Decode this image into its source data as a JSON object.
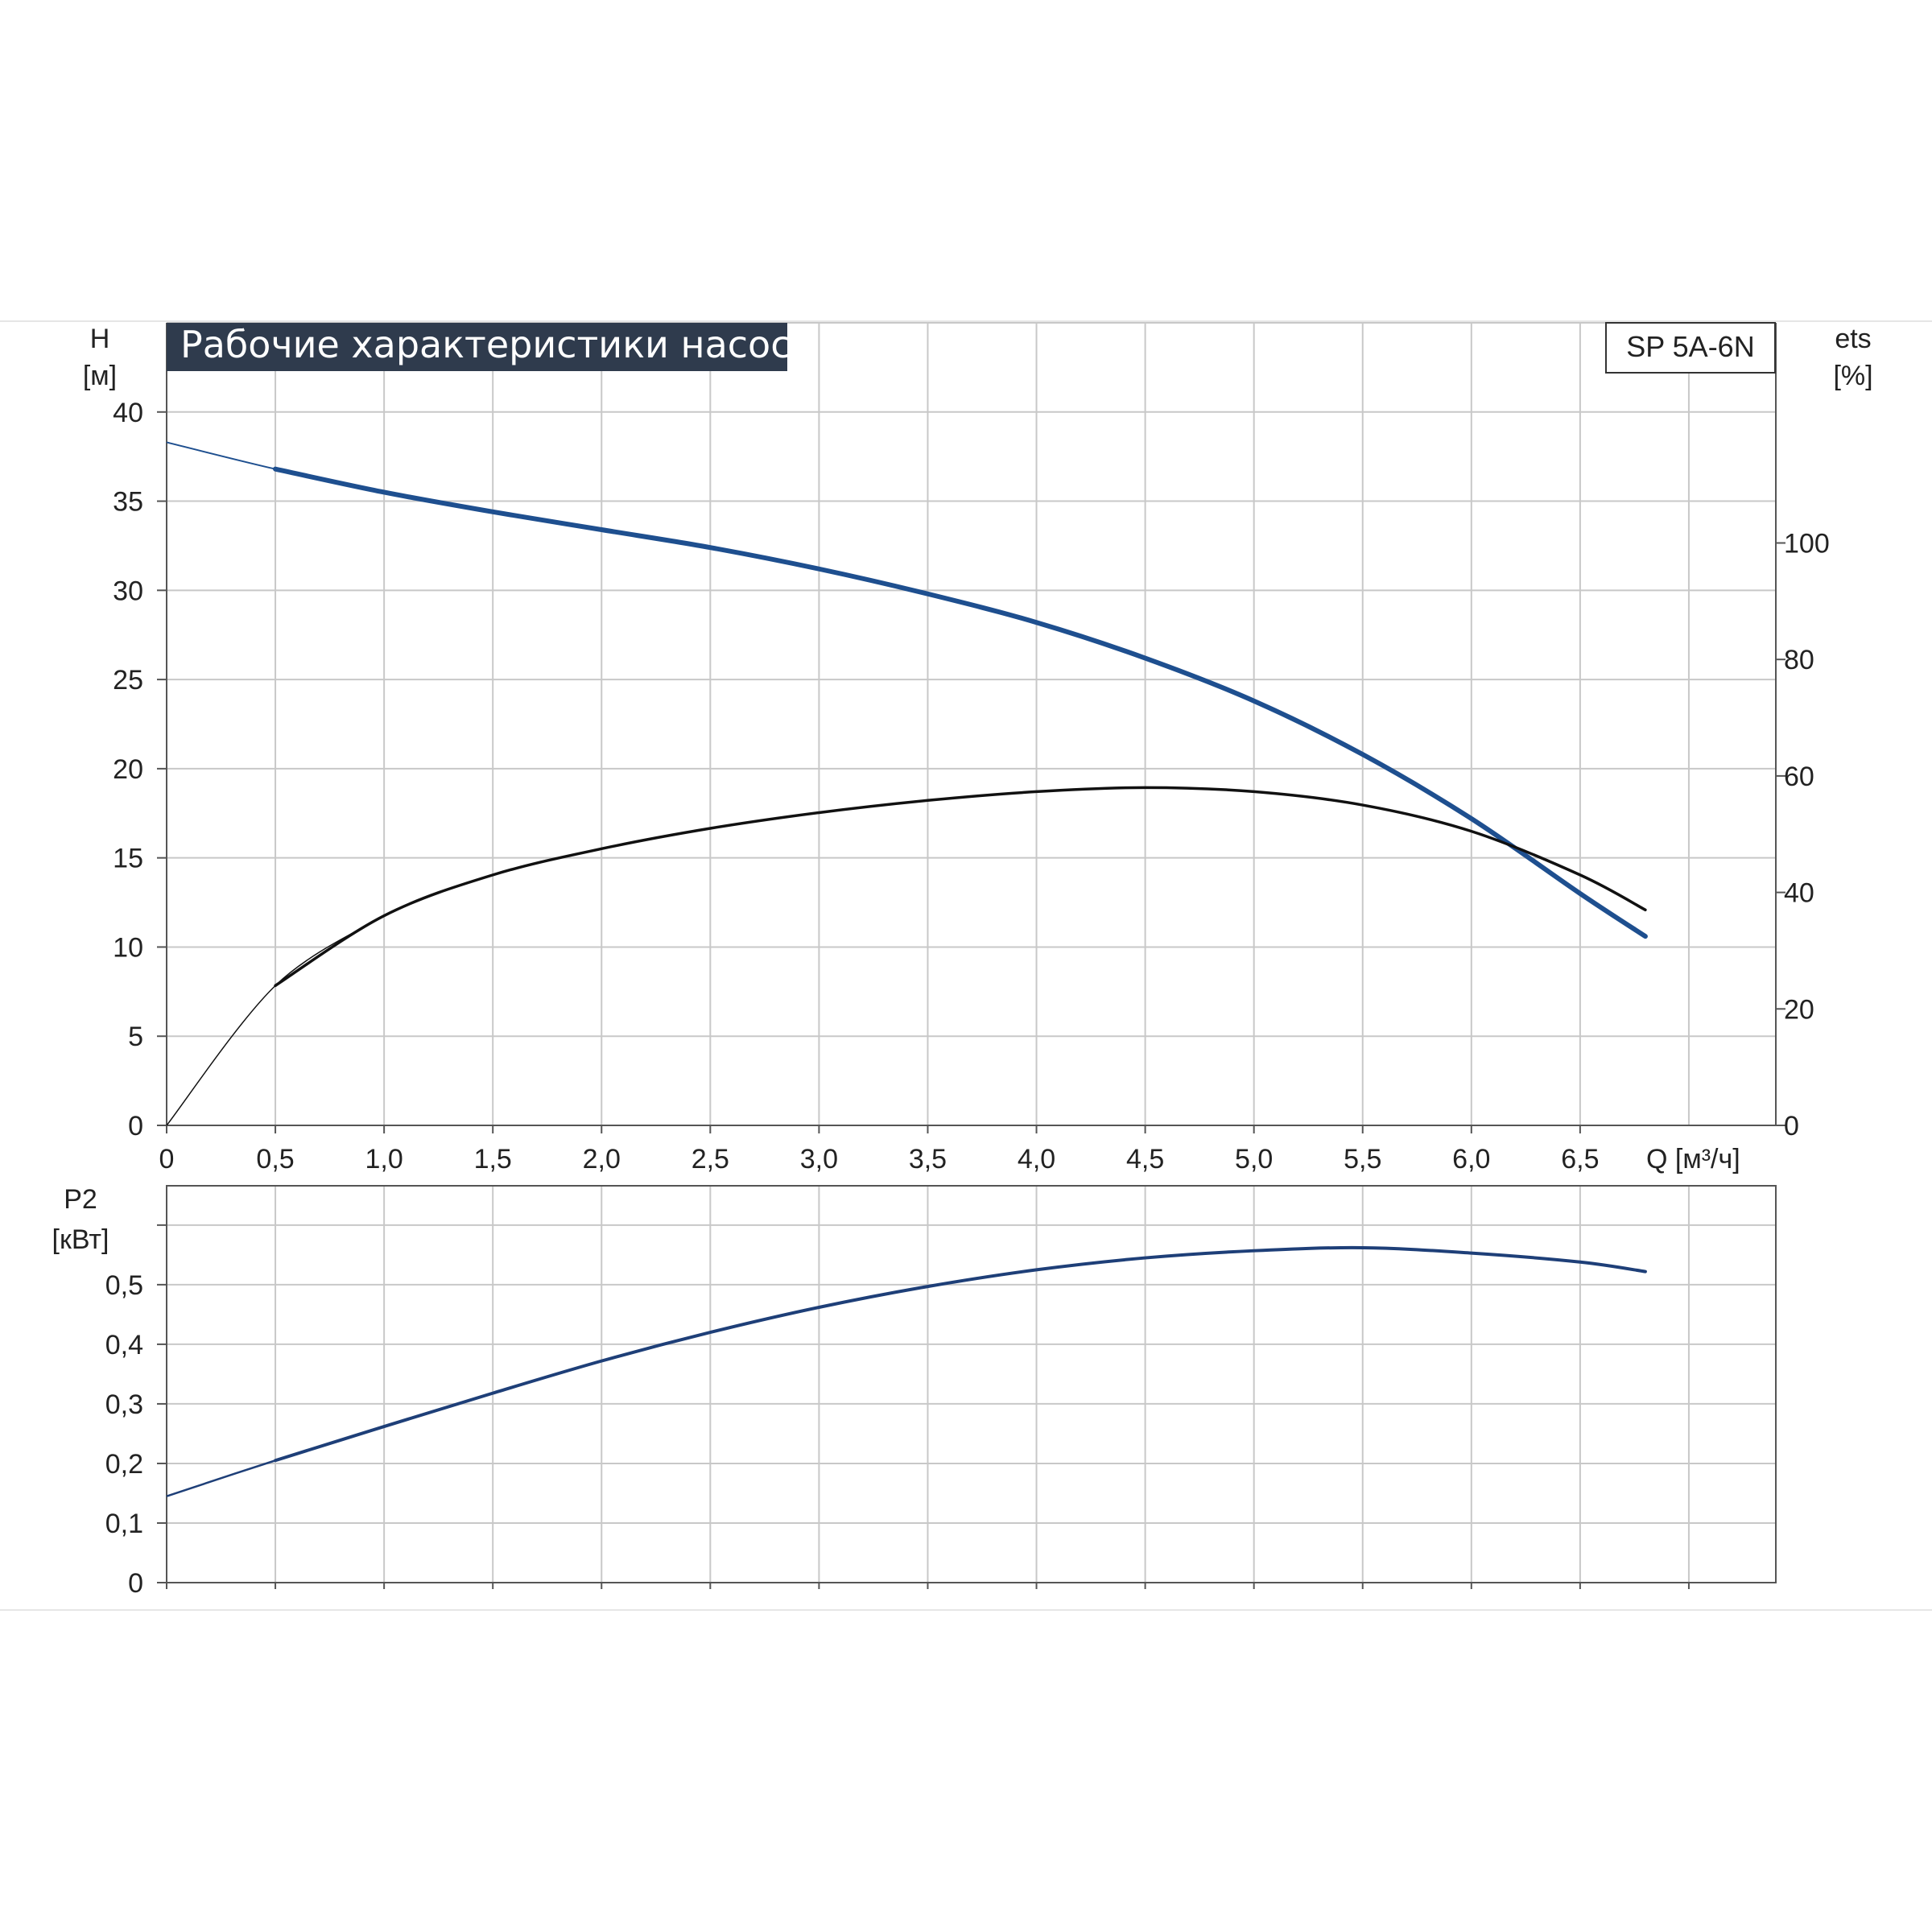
{
  "title": "Рабочие характеристики насоса",
  "model_label": "SP 5A-6N",
  "colors": {
    "title_bg": "#2f3b4d",
    "head_curve": "#1e4f8f",
    "efficiency_curve": "#111111",
    "power_curve": "#1e3f78",
    "grid": "#c8c8c8",
    "axis": "#555555"
  },
  "chart_data": [
    {
      "type": "line",
      "name": "head-efficiency",
      "title": "Рабочие характеристики насоса",
      "xlabel": "Q [м³/ч]",
      "ylabel_left": [
        "H",
        "[м]"
      ],
      "ylabel_right": [
        "ets",
        "[%]"
      ],
      "x_ticks": [
        "0",
        "0,5",
        "1,0",
        "1,5",
        "2,0",
        "2,5",
        "3,0",
        "3,5",
        "4,0",
        "4,5",
        "5,0",
        "5,5",
        "6,0",
        "6,5"
      ],
      "y_ticks_left": [
        "0",
        "5",
        "10",
        "15",
        "20",
        "25",
        "30",
        "35",
        "40"
      ],
      "y_ticks_right": [
        "0",
        "20",
        "40",
        "60",
        "80",
        "100"
      ],
      "xlim": [
        0,
        7.4
      ],
      "ylim_left": [
        0,
        45
      ],
      "ylim_right": [
        0,
        137.8
      ],
      "grid": true,
      "series": [
        {
          "axis": "left",
          "x": [
            0,
            0.5,
            1.0,
            1.5,
            2.0,
            2.5,
            3.0,
            3.5,
            4.0,
            4.5,
            5.0,
            5.5,
            6.0,
            6.5,
            6.8
          ],
          "y": [
            38.3,
            36.8,
            35.5,
            34.4,
            33.4,
            32.4,
            31.2,
            29.8,
            28.2,
            26.2,
            23.8,
            20.8,
            17.2,
            13.0,
            10.6
          ]
        },
        {
          "axis": "right",
          "x": [
            0,
            0.5,
            1.0,
            1.5,
            2.0,
            2.5,
            3.0,
            3.5,
            4.0,
            4.5,
            5.0,
            5.5,
            6.0,
            6.5,
            6.8
          ],
          "y": [
            0,
            24,
            36,
            43,
            47.5,
            51,
            53.7,
            55.8,
            57.3,
            58,
            57.3,
            55,
            50.5,
            43,
            37
          ]
        }
      ]
    },
    {
      "type": "line",
      "name": "power",
      "ylabel": [
        "P2",
        "[кВт]"
      ],
      "xlim": [
        0,
        7.4
      ],
      "ylim": [
        0,
        0.666
      ],
      "y_ticks": [
        "0",
        "0,1",
        "0,2",
        "0,3",
        "0,4",
        "0,5"
      ],
      "grid": true,
      "series": [
        {
          "x": [
            0,
            0.5,
            1.0,
            1.5,
            2.0,
            2.5,
            3.0,
            3.5,
            4.0,
            4.5,
            5.0,
            5.5,
            6.0,
            6.5,
            6.8
          ],
          "y": [
            0.145,
            0.205,
            0.262,
            0.318,
            0.372,
            0.42,
            0.462,
            0.497,
            0.525,
            0.545,
            0.557,
            0.562,
            0.553,
            0.538,
            0.522
          ]
        }
      ]
    }
  ]
}
